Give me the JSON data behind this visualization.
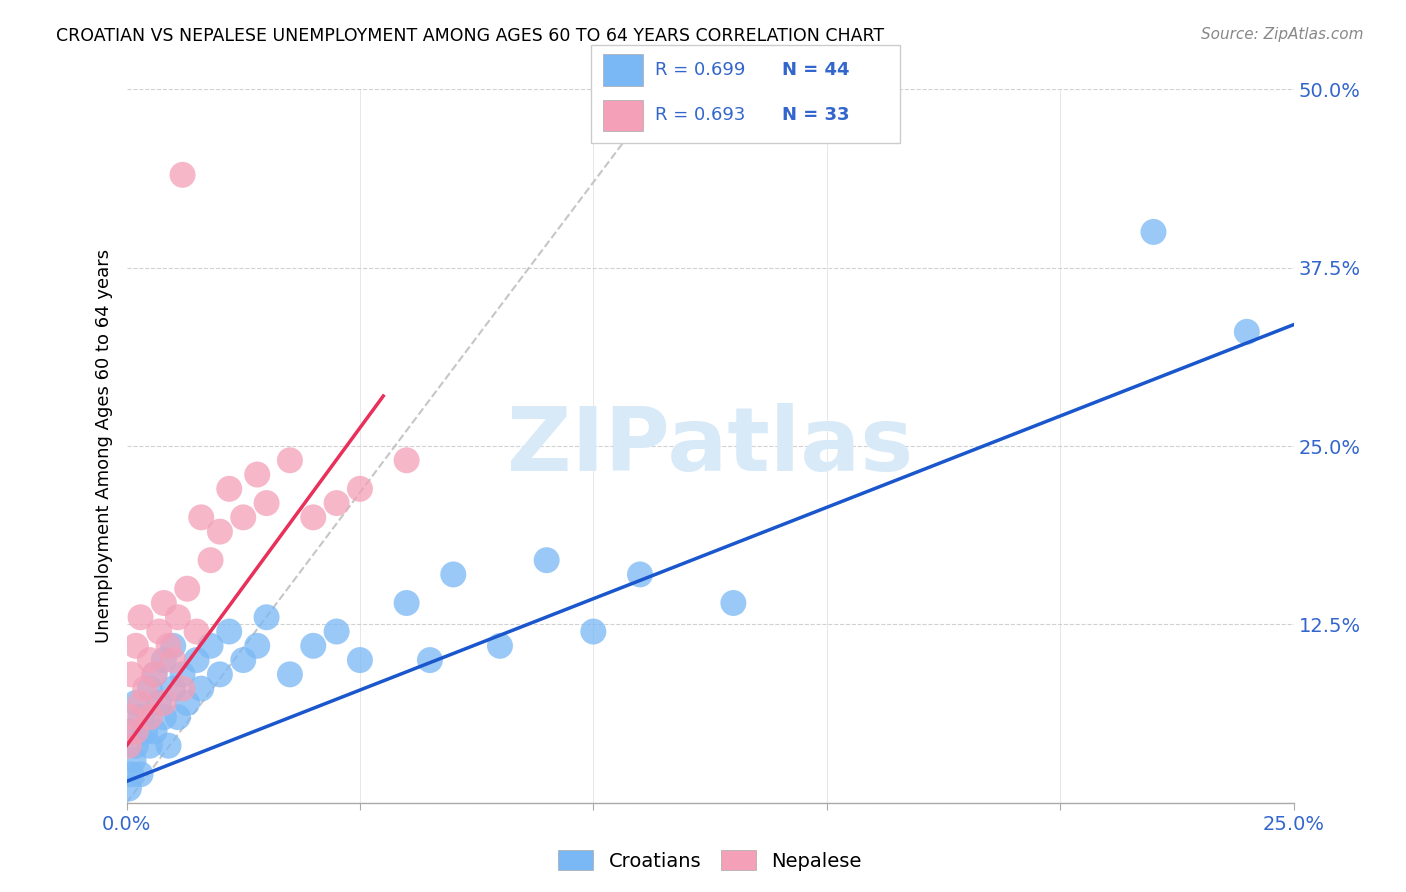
{
  "title": "CROATIAN VS NEPALESE UNEMPLOYMENT AMONG AGES 60 TO 64 YEARS CORRELATION CHART",
  "source": "Source: ZipAtlas.com",
  "ylabel_label": "Unemployment Among Ages 60 to 64 years",
  "croatian_color": "#7ab8f5",
  "nepalese_color": "#f4a0b8",
  "blue_line_color": "#1a56cc",
  "pink_line_color": "#e8305a",
  "dashed_line_color": "#c0c0c0",
  "watermark_color": "#d8eaf8",
  "croatians_label": "Croatians",
  "nepalese_label": "Nepalese",
  "r_croatian": 0.699,
  "n_croatian": 44,
  "r_nepalese": 0.693,
  "n_nepalese": 33,
  "xmin": 0.0,
  "xmax": 0.25,
  "ymin": 0.0,
  "ymax": 0.5,
  "croatian_x": [
    0.0005,
    0.001,
    0.001,
    0.0015,
    0.002,
    0.002,
    0.003,
    0.003,
    0.004,
    0.005,
    0.005,
    0.006,
    0.006,
    0.007,
    0.008,
    0.008,
    0.009,
    0.01,
    0.01,
    0.011,
    0.012,
    0.013,
    0.015,
    0.016,
    0.018,
    0.02,
    0.022,
    0.025,
    0.028,
    0.03,
    0.035,
    0.04,
    0.045,
    0.05,
    0.06,
    0.065,
    0.07,
    0.08,
    0.09,
    0.1,
    0.11,
    0.13,
    0.22,
    0.24
  ],
  "croatian_y": [
    0.01,
    0.02,
    0.05,
    0.03,
    0.04,
    0.07,
    0.02,
    0.06,
    0.05,
    0.04,
    0.08,
    0.05,
    0.09,
    0.07,
    0.06,
    0.1,
    0.04,
    0.08,
    0.11,
    0.06,
    0.09,
    0.07,
    0.1,
    0.08,
    0.11,
    0.09,
    0.12,
    0.1,
    0.11,
    0.13,
    0.09,
    0.11,
    0.12,
    0.1,
    0.14,
    0.1,
    0.16,
    0.11,
    0.17,
    0.12,
    0.16,
    0.14,
    0.4,
    0.33
  ],
  "nepalese_x": [
    0.0005,
    0.001,
    0.001,
    0.002,
    0.002,
    0.003,
    0.003,
    0.004,
    0.005,
    0.005,
    0.006,
    0.007,
    0.008,
    0.008,
    0.009,
    0.01,
    0.011,
    0.012,
    0.013,
    0.015,
    0.016,
    0.018,
    0.02,
    0.022,
    0.025,
    0.028,
    0.03,
    0.035,
    0.04,
    0.045,
    0.05,
    0.06,
    0.012
  ],
  "nepalese_y": [
    0.04,
    0.06,
    0.09,
    0.05,
    0.11,
    0.07,
    0.13,
    0.08,
    0.06,
    0.1,
    0.09,
    0.12,
    0.07,
    0.14,
    0.11,
    0.1,
    0.13,
    0.08,
    0.15,
    0.12,
    0.2,
    0.17,
    0.19,
    0.22,
    0.2,
    0.23,
    0.21,
    0.24,
    0.2,
    0.21,
    0.22,
    0.24,
    0.44
  ],
  "blue_line_x": [
    0.0,
    0.25
  ],
  "blue_line_y": [
    0.015,
    0.335
  ],
  "pink_line_x": [
    0.0,
    0.055
  ],
  "pink_line_y": [
    0.04,
    0.285
  ],
  "dash_line_x": [
    0.0,
    0.115
  ],
  "dash_line_y": [
    0.0,
    0.5
  ]
}
